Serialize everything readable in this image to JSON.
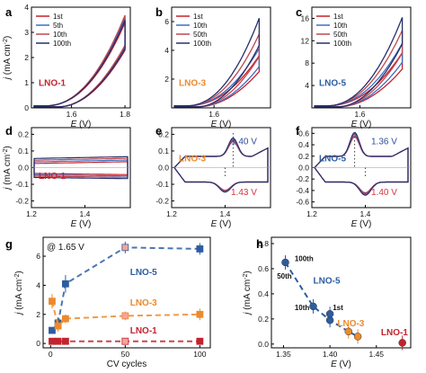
{
  "colors": {
    "c1": "#c8202e",
    "c2": "#3d6fc0",
    "c3": "#c0474f",
    "c4": "#26306b",
    "lno1": "#c2242e",
    "lno3": "#ec8a2c",
    "lno5": "#2d5d9f",
    "anno_blue": "#2d4f9a",
    "anno_red": "#d4353d"
  },
  "chart_data": [
    {
      "id": "a",
      "panel_label": "a",
      "type": "line",
      "sample_label": "LNO-1",
      "xlabel": "E (V)",
      "ylabel": "j (mA cm⁻²)",
      "xlim": [
        1.45,
        1.82
      ],
      "ylim": [
        0,
        4
      ],
      "xticks": [
        1.6,
        1.8
      ],
      "xtick_labels": [
        "1.6",
        "1.8"
      ],
      "yticks": [
        0,
        1,
        2,
        3,
        4
      ],
      "ytick_labels": [
        "0",
        "1",
        "2",
        "3",
        "4"
      ],
      "legend": [
        "1st",
        "5th",
        "10th",
        "100th"
      ],
      "jmax": [
        3.3,
        3.5,
        3.6,
        3.4
      ],
      "emax": 1.8,
      "onset": 1.5,
      "sweep_gap": 0.05,
      "x_label_parts": [
        "E",
        " (V)"
      ],
      "y_label_parts": [
        "j",
        " (mA cm",
        "-2",
        ")"
      ]
    },
    {
      "id": "b",
      "panel_label": "b",
      "type": "line",
      "sample_label": "LNO-3",
      "xlabel": "E (V)",
      "ylabel": "",
      "xlim": [
        1.45,
        1.8
      ],
      "ylim": [
        0,
        7
      ],
      "xticks": [
        1.6
      ],
      "xtick_labels": [
        "1.6"
      ],
      "yticks": [
        2,
        4,
        6
      ],
      "ytick_labels": [
        "2",
        "4",
        "6"
      ],
      "legend": [
        "1st",
        "10th",
        "50th",
        "100th"
      ],
      "jmax": [
        3.5,
        4.0,
        5.0,
        6.1
      ],
      "emax": 1.76,
      "onset": 1.5,
      "sweep_gap": 0.04,
      "x_label_parts": [
        "E",
        " (V)"
      ],
      "y_label_parts": []
    },
    {
      "id": "c",
      "panel_label": "c",
      "type": "line",
      "sample_label": "LNO-5",
      "xlabel": "E (V)",
      "ylabel": "",
      "xlim": [
        1.43,
        1.78
      ],
      "ylim": [
        0,
        18
      ],
      "xticks": [
        1.6
      ],
      "xtick_labels": [
        "1.6"
      ],
      "yticks": [
        4,
        8,
        12,
        16
      ],
      "ytick_labels": [
        "4",
        "8",
        "12",
        "16"
      ],
      "legend": [
        "1st",
        "10th",
        "50th",
        "100th"
      ],
      "jmax": [
        9.5,
        11.2,
        13.5,
        15.8
      ],
      "emax": 1.75,
      "onset": 1.48,
      "sweep_gap": 0.04,
      "x_label_parts": [
        "E",
        " (V)"
      ],
      "y_label_parts": []
    },
    {
      "id": "d",
      "panel_label": "d",
      "type": "line",
      "sample_label": "LNO-1",
      "xlabel": "E (V)",
      "ylabel": "j (mA cm⁻²)",
      "xlim": [
        1.2,
        1.57
      ],
      "ylim": [
        -0.24,
        0.24
      ],
      "xticks": [
        1.2,
        1.4
      ],
      "xtick_labels": [
        "1.2",
        "1.4"
      ],
      "yticks": [
        -0.2,
        -0.1,
        0,
        0.1,
        0.2
      ],
      "ytick_labels": [
        "-0.2",
        "-0.1",
        "0.0",
        "0.1",
        "0.2"
      ],
      "x_label_parts": [
        "E",
        " (V)"
      ],
      "y_label_parts": [
        "j",
        " (mA cm",
        "-2",
        ")"
      ]
    },
    {
      "id": "e",
      "panel_label": "e",
      "type": "line",
      "sample_label": "LNO-3",
      "xlabel": "E (V)",
      "ylabel": "",
      "xlim": [
        1.2,
        1.57
      ],
      "ylim": [
        -0.24,
        0.24
      ],
      "xticks": [
        1.2,
        1.4
      ],
      "xtick_labels": [
        "1.2",
        "1.4"
      ],
      "yticks": [
        -0.2,
        -0.1,
        0,
        0.1,
        0.2
      ],
      "ytick_labels": [
        "-0.2",
        "-0.1",
        "0.0",
        "0.1",
        "0.2"
      ],
      "annotations": [
        "1.40 V",
        "1.43 V"
      ],
      "peak_anodic": 1.43,
      "peak_cathodic": 1.4,
      "peak_height": 0.11,
      "x_label_parts": [
        "E",
        " (V)"
      ],
      "y_label_parts": []
    },
    {
      "id": "f",
      "panel_label": "f",
      "type": "line",
      "sample_label": "LNO-5",
      "xlabel": "E (V)",
      "ylabel": "",
      "xlim": [
        1.2,
        1.57
      ],
      "ylim": [
        -0.7,
        0.7
      ],
      "xticks": [
        1.2,
        1.4
      ],
      "xtick_labels": [
        "1.2",
        "1.4"
      ],
      "yticks": [
        -0.6,
        -0.4,
        -0.2,
        0,
        0.2,
        0.4,
        0.6
      ],
      "ytick_labels": [
        "-0.6",
        "-0.4",
        "-0.2",
        "0.0",
        "0.2",
        "0.4",
        "0.6"
      ],
      "annotations": [
        "1.36 V",
        "1.40 V"
      ],
      "peak_anodic": 1.36,
      "peak_cathodic": 1.4,
      "peak_height": 0.42,
      "x_label_parts": [
        "E",
        " (V)"
      ],
      "y_label_parts": []
    },
    {
      "id": "g",
      "panel_label": "g",
      "type": "scatter",
      "annotation": "@ 1.65 V",
      "xlabel": "CV cycles",
      "ylabel": "j (mA cm⁻²)",
      "xlim": [
        -5,
        107
      ],
      "ylim": [
        -0.3,
        7.3
      ],
      "xticks": [
        0,
        50,
        100
      ],
      "xtick_labels": [
        "0",
        "50",
        "100"
      ],
      "yticks": [
        0,
        2,
        4,
        6
      ],
      "ytick_labels": [
        "0",
        "2",
        "4",
        "6"
      ],
      "x": [
        1,
        5,
        10,
        50,
        100
      ],
      "series": [
        {
          "name": "LNO-5",
          "values": [
            0.9,
            1.4,
            4.1,
            6.6,
            6.5
          ],
          "err": [
            0.2,
            0.4,
            0.6,
            0.4,
            0.4
          ],
          "open_x": 50
        },
        {
          "name": "LNO-3",
          "values": [
            2.9,
            1.2,
            1.7,
            1.9,
            2.0
          ],
          "err": [
            0.5,
            0.4,
            0.3,
            0.3,
            0.4
          ],
          "open_x": 50
        },
        {
          "name": "LNO-1",
          "values": [
            0.15,
            0.15,
            0.15,
            0.15,
            0.15
          ],
          "err": [
            0.2,
            0.2,
            0.2,
            0.2,
            0.2
          ],
          "open_x": 50
        }
      ],
      "x_label_parts": [
        "CV cycles"
      ],
      "y_label_parts": [
        "j",
        " (mA cm",
        "-2",
        ")"
      ]
    },
    {
      "id": "h",
      "panel_label": "h",
      "type": "scatter",
      "xlabel": "E (V)",
      "ylabel": "j (mA cm⁻²)",
      "xlim": [
        1.337,
        1.487
      ],
      "ylim": [
        -0.03,
        0.85
      ],
      "xticks": [
        1.35,
        1.4,
        1.45
      ],
      "xtick_labels": [
        "1.35",
        "1.40",
        "1.45"
      ],
      "yticks": [
        0,
        0.2,
        0.4,
        0.6,
        0.8
      ],
      "ytick_labels": [
        "0.0",
        "0.2",
        "0.4",
        "0.6",
        "0.8"
      ],
      "series": [
        {
          "name": "LNO-5",
          "points": [
            [
              1.352,
              0.65
            ],
            [
              1.382,
              0.3
            ],
            [
              1.4,
              0.19
            ],
            [
              1.4,
              0.24
            ]
          ]
        },
        {
          "name": "LNO-3",
          "points": [
            [
              1.42,
              0.1
            ],
            [
              1.43,
              0.06
            ]
          ]
        },
        {
          "name": "LNO-1",
          "points": [
            [
              1.478,
              0.01
            ]
          ]
        }
      ],
      "labels": {
        "l100": "100th",
        "l50": "50th",
        "l10": "10th",
        "l1": "1st"
      },
      "x_label_parts": [
        "E",
        " (V)"
      ],
      "y_label_parts": [
        "j",
        " (mA cm",
        "-2",
        ")"
      ]
    }
  ]
}
